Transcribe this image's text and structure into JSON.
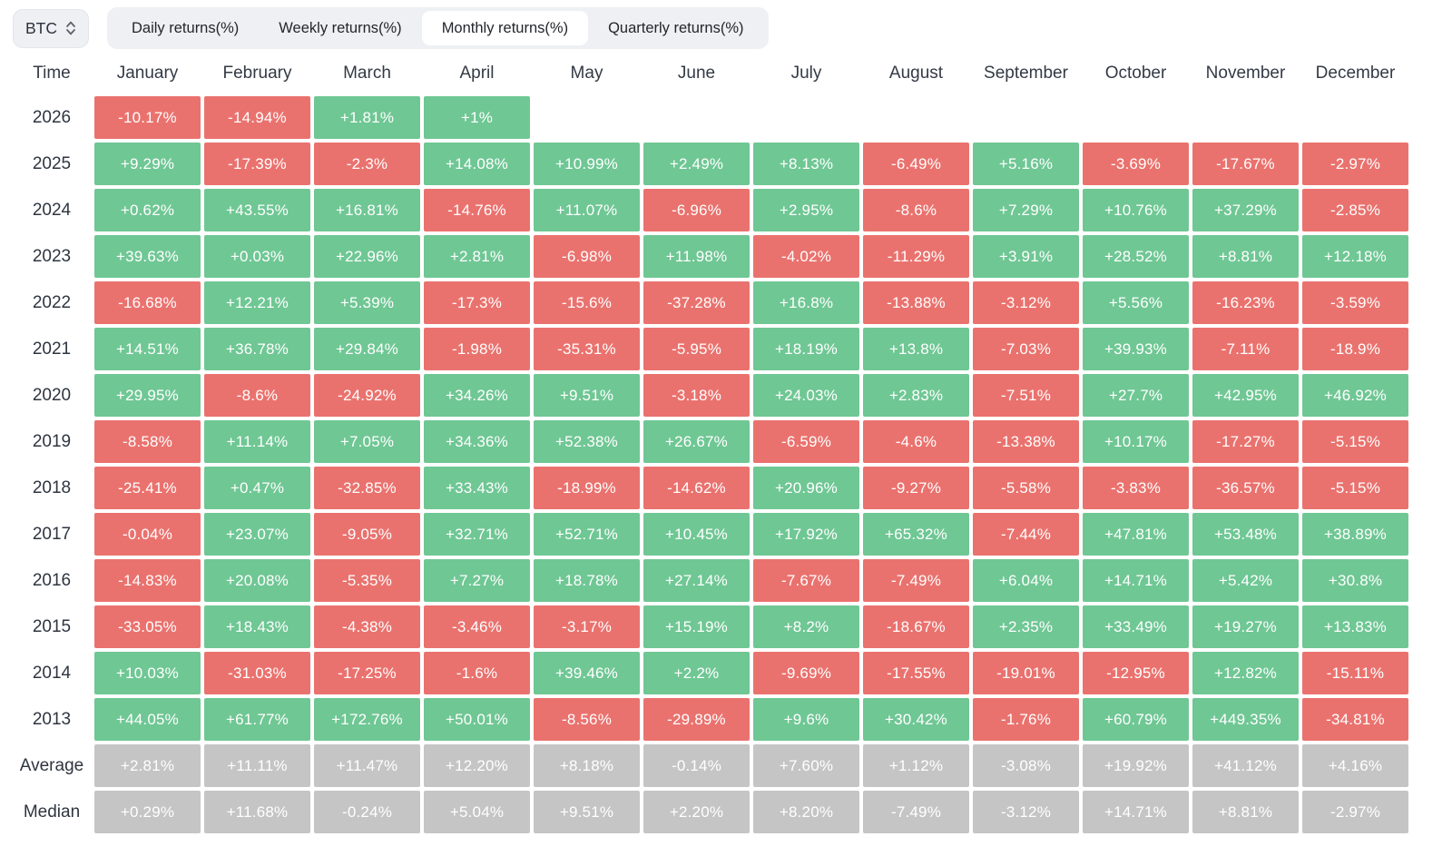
{
  "toolbar": {
    "asset_selector": {
      "value": "BTC"
    },
    "tabs": [
      {
        "label": "Daily returns(%)",
        "active": false
      },
      {
        "label": "Weekly returns(%)",
        "active": false
      },
      {
        "label": "Monthly returns(%)",
        "active": true
      },
      {
        "label": "Quarterly returns(%)",
        "active": false
      }
    ]
  },
  "table": {
    "time_header": "Time",
    "month_headers": [
      "January",
      "February",
      "March",
      "April",
      "May",
      "June",
      "July",
      "August",
      "September",
      "October",
      "November",
      "December"
    ],
    "rows": [
      {
        "label": "2026",
        "type": "year",
        "values": [
          "-10.17%",
          "-14.94%",
          "+1.81%",
          "+1%",
          "",
          "",
          "",
          "",
          "",
          "",
          "",
          ""
        ]
      },
      {
        "label": "2025",
        "type": "year",
        "values": [
          "+9.29%",
          "-17.39%",
          "-2.3%",
          "+14.08%",
          "+10.99%",
          "+2.49%",
          "+8.13%",
          "-6.49%",
          "+5.16%",
          "-3.69%",
          "-17.67%",
          "-2.97%"
        ]
      },
      {
        "label": "2024",
        "type": "year",
        "values": [
          "+0.62%",
          "+43.55%",
          "+16.81%",
          "-14.76%",
          "+11.07%",
          "-6.96%",
          "+2.95%",
          "-8.6%",
          "+7.29%",
          "+10.76%",
          "+37.29%",
          "-2.85%"
        ]
      },
      {
        "label": "2023",
        "type": "year",
        "values": [
          "+39.63%",
          "+0.03%",
          "+22.96%",
          "+2.81%",
          "-6.98%",
          "+11.98%",
          "-4.02%",
          "-11.29%",
          "+3.91%",
          "+28.52%",
          "+8.81%",
          "+12.18%"
        ]
      },
      {
        "label": "2022",
        "type": "year",
        "values": [
          "-16.68%",
          "+12.21%",
          "+5.39%",
          "-17.3%",
          "-15.6%",
          "-37.28%",
          "+16.8%",
          "-13.88%",
          "-3.12%",
          "+5.56%",
          "-16.23%",
          "-3.59%"
        ]
      },
      {
        "label": "2021",
        "type": "year",
        "values": [
          "+14.51%",
          "+36.78%",
          "+29.84%",
          "-1.98%",
          "-35.31%",
          "-5.95%",
          "+18.19%",
          "+13.8%",
          "-7.03%",
          "+39.93%",
          "-7.11%",
          "-18.9%"
        ]
      },
      {
        "label": "2020",
        "type": "year",
        "values": [
          "+29.95%",
          "-8.6%",
          "-24.92%",
          "+34.26%",
          "+9.51%",
          "-3.18%",
          "+24.03%",
          "+2.83%",
          "-7.51%",
          "+27.7%",
          "+42.95%",
          "+46.92%"
        ]
      },
      {
        "label": "2019",
        "type": "year",
        "values": [
          "-8.58%",
          "+11.14%",
          "+7.05%",
          "+34.36%",
          "+52.38%",
          "+26.67%",
          "-6.59%",
          "-4.6%",
          "-13.38%",
          "+10.17%",
          "-17.27%",
          "-5.15%"
        ]
      },
      {
        "label": "2018",
        "type": "year",
        "values": [
          "-25.41%",
          "+0.47%",
          "-32.85%",
          "+33.43%",
          "-18.99%",
          "-14.62%",
          "+20.96%",
          "-9.27%",
          "-5.58%",
          "-3.83%",
          "-36.57%",
          "-5.15%"
        ]
      },
      {
        "label": "2017",
        "type": "year",
        "values": [
          "-0.04%",
          "+23.07%",
          "-9.05%",
          "+32.71%",
          "+52.71%",
          "+10.45%",
          "+17.92%",
          "+65.32%",
          "-7.44%",
          "+47.81%",
          "+53.48%",
          "+38.89%"
        ]
      },
      {
        "label": "2016",
        "type": "year",
        "values": [
          "-14.83%",
          "+20.08%",
          "-5.35%",
          "+7.27%",
          "+18.78%",
          "+27.14%",
          "-7.67%",
          "-7.49%",
          "+6.04%",
          "+14.71%",
          "+5.42%",
          "+30.8%"
        ]
      },
      {
        "label": "2015",
        "type": "year",
        "values": [
          "-33.05%",
          "+18.43%",
          "-4.38%",
          "-3.46%",
          "-3.17%",
          "+15.19%",
          "+8.2%",
          "-18.67%",
          "+2.35%",
          "+33.49%",
          "+19.27%",
          "+13.83%"
        ]
      },
      {
        "label": "2014",
        "type": "year",
        "values": [
          "+10.03%",
          "-31.03%",
          "-17.25%",
          "-1.6%",
          "+39.46%",
          "+2.2%",
          "-9.69%",
          "-17.55%",
          "-19.01%",
          "-12.95%",
          "+12.82%",
          "-15.11%"
        ]
      },
      {
        "label": "2013",
        "type": "year",
        "values": [
          "+44.05%",
          "+61.77%",
          "+172.76%",
          "+50.01%",
          "-8.56%",
          "-29.89%",
          "+9.6%",
          "+30.42%",
          "-1.76%",
          "+60.79%",
          "+449.35%",
          "-34.81%"
        ]
      },
      {
        "label": "Average",
        "type": "summary",
        "values": [
          "+2.81%",
          "+11.11%",
          "+11.47%",
          "+12.20%",
          "+8.18%",
          "-0.14%",
          "+7.60%",
          "+1.12%",
          "-3.08%",
          "+19.92%",
          "+41.12%",
          "+4.16%"
        ]
      },
      {
        "label": "Median",
        "type": "summary",
        "values": [
          "+0.29%",
          "+11.68%",
          "-0.24%",
          "+5.04%",
          "+9.51%",
          "+2.20%",
          "+8.20%",
          "-7.49%",
          "-3.12%",
          "+14.71%",
          "+8.81%",
          "-2.97%"
        ]
      }
    ]
  },
  "colors": {
    "positive": "#6fc794",
    "negative": "#ea726e",
    "summary": "#c5c5c5",
    "chip_bg": "#eef0f4",
    "active_tab": "#ffffff",
    "cell_text": "#ffffff",
    "text_dark": "#2c323d"
  }
}
